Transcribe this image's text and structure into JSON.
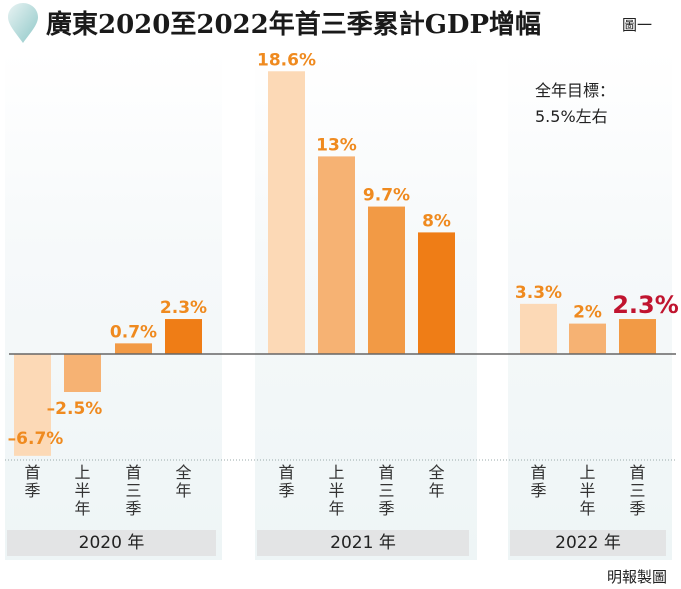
{
  "title": "廣東2020至2022年首三季累計GDP增幅",
  "figure_label": "圖一",
  "target_note": [
    "全年目標：",
    "5.5%左右"
  ],
  "credit": "明報製圖",
  "colors": {
    "q1": "#fcd9b6",
    "h1": "#f6b273",
    "q3": "#f29a45",
    "fy": "#ef7d16",
    "label": "#ef8a1f",
    "highlight": "#c0142f",
    "axis": "#666666"
  },
  "chart_data": {
    "type": "bar",
    "title": "廣東2020至2022年首三季累計GDP增幅",
    "xlabel": "",
    "ylabel": "",
    "unit": "%",
    "grid": false,
    "legend": "none",
    "groups": [
      {
        "year": "2020 年",
        "categories": [
          "首季",
          "上半年",
          "首三季",
          "全年"
        ],
        "values": [
          -6.7,
          -2.5,
          0.7,
          2.3
        ],
        "labels": [
          "–6.7%",
          "–2.5%",
          "0.7%",
          "2.3%"
        ]
      },
      {
        "year": "2021 年",
        "categories": [
          "首季",
          "上半年",
          "首三季",
          "全年"
        ],
        "values": [
          18.6,
          13,
          9.7,
          8
        ],
        "labels": [
          "18.6%",
          "13%",
          "9.7%",
          "8%"
        ]
      },
      {
        "year": "2022 年",
        "categories": [
          "首季",
          "上半年",
          "首三季"
        ],
        "values": [
          3.3,
          2,
          2.3
        ],
        "labels": [
          "3.3%",
          "2%",
          "2.3%"
        ],
        "highlight_index": 2
      }
    ],
    "annotation": "全年目標：5.5%左右"
  }
}
